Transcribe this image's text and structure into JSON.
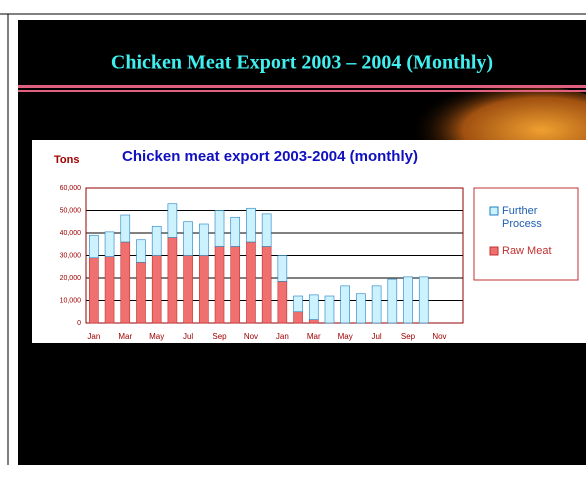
{
  "slide_title": "Chicken Meat Export 2003 – 2004 (Monthly)",
  "chart_data": {
    "type": "bar",
    "stacked": true,
    "title": "Chicken meat export 2003-2004 (monthly)",
    "y_label": "Tons",
    "categories": [
      "Jan",
      null,
      "Mar",
      null,
      "May",
      null,
      "Jul",
      null,
      "Sep",
      null,
      "Nov",
      null,
      "Jan",
      null,
      "Mar",
      null,
      "May",
      null,
      "Jul",
      null,
      "Sep",
      null,
      "Nov",
      null
    ],
    "series": [
      {
        "name": "Further Process",
        "color": "#ccf2ff",
        "values": [
          10000,
          11000,
          12000,
          10000,
          13000,
          15000,
          15000,
          14000,
          16000,
          13000,
          15000,
          14500,
          11500,
          7000,
          11000,
          12000,
          16500,
          13000,
          16500,
          19500,
          20500,
          20500,
          null,
          null
        ]
      },
      {
        "name": "Raw Meat",
        "color": "#f07070",
        "values": [
          29000,
          29500,
          36000,
          27000,
          30000,
          38000,
          30000,
          30000,
          34000,
          34000,
          36000,
          34000,
          18500,
          5000,
          1500,
          0,
          0,
          0,
          0,
          0,
          0,
          0,
          null,
          null
        ]
      }
    ],
    "ylim": [
      0,
      60000
    ],
    "yticks": [
      0,
      {
        "value": 10000,
        "label": "10,000"
      },
      {
        "value": 20000,
        "label": "20,000"
      },
      {
        "value": 30000,
        "label": "30,000"
      },
      {
        "value": 40000,
        "label": "40,000"
      },
      {
        "value": 50000,
        "label": "50,000"
      },
      {
        "value": 60000,
        "label": "60,000"
      }
    ],
    "grid": true,
    "legend": "right"
  }
}
